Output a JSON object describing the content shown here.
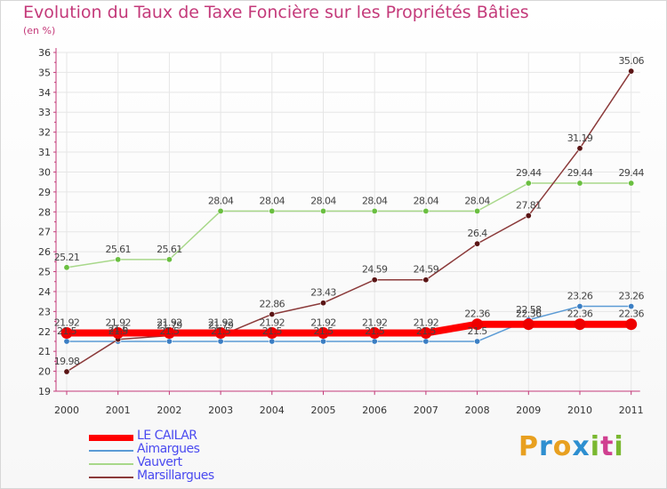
{
  "title": "Evolution du Taux de Taxe Foncière sur les Propriétés Bâties",
  "subtitle": "(en %)",
  "brand": {
    "letters": [
      "P",
      "r",
      "o",
      "x",
      "i",
      "t",
      "i"
    ],
    "colors": [
      "#e8a020",
      "#2e8fd0",
      "#e8a020",
      "#2e8fd0",
      "#7ab830",
      "#d04090",
      "#7ab830"
    ]
  },
  "chart_data": {
    "type": "line",
    "title": "Evolution du Taux de Taxe Foncière sur les Propriétés Bâties",
    "ylabel": "(en %)",
    "xlabel": "",
    "ylim": [
      19,
      36
    ],
    "categories": [
      "2000",
      "2001",
      "2002",
      "2003",
      "2004",
      "2005",
      "2006",
      "2007",
      "2008",
      "2009",
      "2010",
      "2011"
    ],
    "y_ticks": [
      "19",
      "20",
      "21",
      "22",
      "23",
      "24",
      "25",
      "26",
      "27",
      "28",
      "29",
      "30",
      "31",
      "32",
      "33",
      "34",
      "35",
      "36"
    ],
    "series": [
      {
        "name": "Aimargues",
        "color": "#5b9bd5",
        "marker": "#3b7fc4",
        "values": [
          21.5,
          21.5,
          21.5,
          21.5,
          21.5,
          21.5,
          21.5,
          21.5,
          21.5,
          22.58,
          23.26,
          23.26
        ],
        "labels": [
          "21.5",
          "21.5",
          "21.5",
          "21.5",
          "21.5",
          "21.5",
          "21.5",
          "21.5",
          "21.5",
          "22.58",
          "23.26",
          "23.26"
        ]
      },
      {
        "name": "Vauvert",
        "color": "#a8d88a",
        "marker": "#6abf40",
        "values": [
          25.21,
          25.61,
          25.61,
          28.04,
          28.04,
          28.04,
          28.04,
          28.04,
          28.04,
          29.44,
          29.44,
          29.44
        ],
        "labels": [
          "25.21",
          "25.61",
          "25.61",
          "28.04",
          "28.04",
          "28.04",
          "28.04",
          "28.04",
          "28.04",
          "29.44",
          "29.44",
          "29.44"
        ]
      },
      {
        "name": "Marsillargues",
        "color": "#8b3a3a",
        "marker": "#5a1515",
        "values": [
          19.98,
          21.6,
          21.79,
          21.79,
          22.86,
          23.43,
          24.59,
          24.59,
          26.4,
          27.81,
          31.19,
          35.06
        ],
        "labels": [
          "19.98",
          "21.6",
          "21.79",
          "21.79",
          "22.86",
          "23.43",
          "24.59",
          "24.59",
          "26.4",
          "27.81",
          "31.19",
          "35.06"
        ]
      },
      {
        "name": "LE CAILAR",
        "color": "#ff0000",
        "marker": "#ee0000",
        "values": [
          21.92,
          21.92,
          21.92,
          21.92,
          21.92,
          21.92,
          21.92,
          21.92,
          22.36,
          22.36,
          22.36,
          22.36
        ],
        "labels": [
          "21.92",
          "21.92",
          "21.92",
          "21.92",
          "21.92",
          "21.92",
          "21.92",
          "21.92",
          "22.36",
          "22.36",
          "22.36",
          "22.36"
        ]
      }
    ],
    "legend": [
      {
        "name": "LE CAILAR",
        "color": "#ff0000"
      },
      {
        "name": "Aimargues",
        "color": "#5b9bd5"
      },
      {
        "name": "Vauvert",
        "color": "#a8d88a"
      },
      {
        "name": "Marsillargues",
        "color": "#8b3a3a"
      }
    ]
  }
}
